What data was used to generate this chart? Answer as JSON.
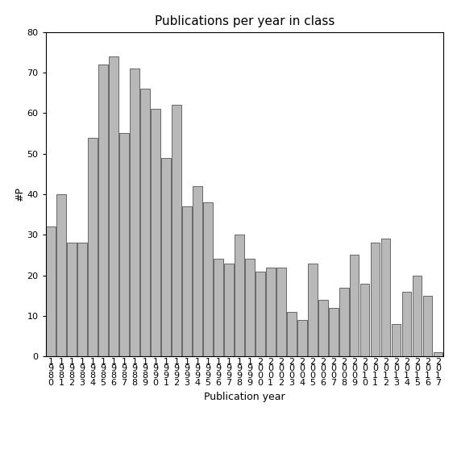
{
  "title": "Publications per year in class",
  "xlabel": "Publication year",
  "ylabel": "#P",
  "years": [
    [
      "1",
      "9",
      "8",
      "0"
    ],
    [
      "1",
      "9",
      "8",
      "1"
    ],
    [
      "1",
      "9",
      "8",
      "2"
    ],
    [
      "1",
      "9",
      "8",
      "3"
    ],
    [
      "1",
      "9",
      "8",
      "4"
    ],
    [
      "1",
      "9",
      "8",
      "5"
    ],
    [
      "1",
      "9",
      "8",
      "6"
    ],
    [
      "1",
      "9",
      "8",
      "7"
    ],
    [
      "1",
      "9",
      "8",
      "8"
    ],
    [
      "1",
      "9",
      "8",
      "9"
    ],
    [
      "1",
      "9",
      "9",
      "0"
    ],
    [
      "1",
      "9",
      "9",
      "1"
    ],
    [
      "1",
      "9",
      "9",
      "2"
    ],
    [
      "1",
      "9",
      "9",
      "3"
    ],
    [
      "1",
      "9",
      "9",
      "4"
    ],
    [
      "1",
      "9",
      "9",
      "5"
    ],
    [
      "1",
      "9",
      "9",
      "6"
    ],
    [
      "1",
      "9",
      "9",
      "7"
    ],
    [
      "1",
      "9",
      "9",
      "8"
    ],
    [
      "1",
      "9",
      "9",
      "9"
    ],
    [
      "2",
      "0",
      "0",
      "0"
    ],
    [
      "2",
      "0",
      "0",
      "1"
    ],
    [
      "2",
      "0",
      "0",
      "2"
    ],
    [
      "2",
      "0",
      "0",
      "3"
    ],
    [
      "2",
      "0",
      "0",
      "4"
    ],
    [
      "2",
      "0",
      "0",
      "5"
    ],
    [
      "2",
      "0",
      "0",
      "6"
    ],
    [
      "2",
      "0",
      "0",
      "7"
    ],
    [
      "2",
      "0",
      "0",
      "8"
    ],
    [
      "2",
      "0",
      "0",
      "9"
    ],
    [
      "2",
      "0",
      "1",
      "0"
    ],
    [
      "2",
      "0",
      "1",
      "1"
    ],
    [
      "2",
      "0",
      "1",
      "2"
    ],
    [
      "2",
      "0",
      "1",
      "3"
    ],
    [
      "2",
      "0",
      "1",
      "4"
    ],
    [
      "2",
      "0",
      "1",
      "5"
    ],
    [
      "2",
      "0",
      "1",
      "6"
    ],
    [
      "2",
      "0",
      "1",
      "7"
    ]
  ],
  "values": [
    32,
    40,
    28,
    28,
    54,
    72,
    74,
    55,
    71,
    66,
    61,
    49,
    62,
    37,
    42,
    38,
    24,
    23,
    30,
    24,
    21,
    22,
    22,
    11,
    9,
    23,
    14,
    12,
    17,
    25,
    18,
    28,
    29,
    8,
    16,
    20,
    15,
    1
  ],
  "bar_color": "#b8b8b8",
  "bar_edge_color": "#555555",
  "ylim": [
    0,
    80
  ],
  "yticks": [
    0,
    10,
    20,
    30,
    40,
    50,
    60,
    70,
    80
  ],
  "background_color": "#ffffff",
  "title_fontsize": 11,
  "axis_label_fontsize": 9,
  "tick_fontsize": 8
}
